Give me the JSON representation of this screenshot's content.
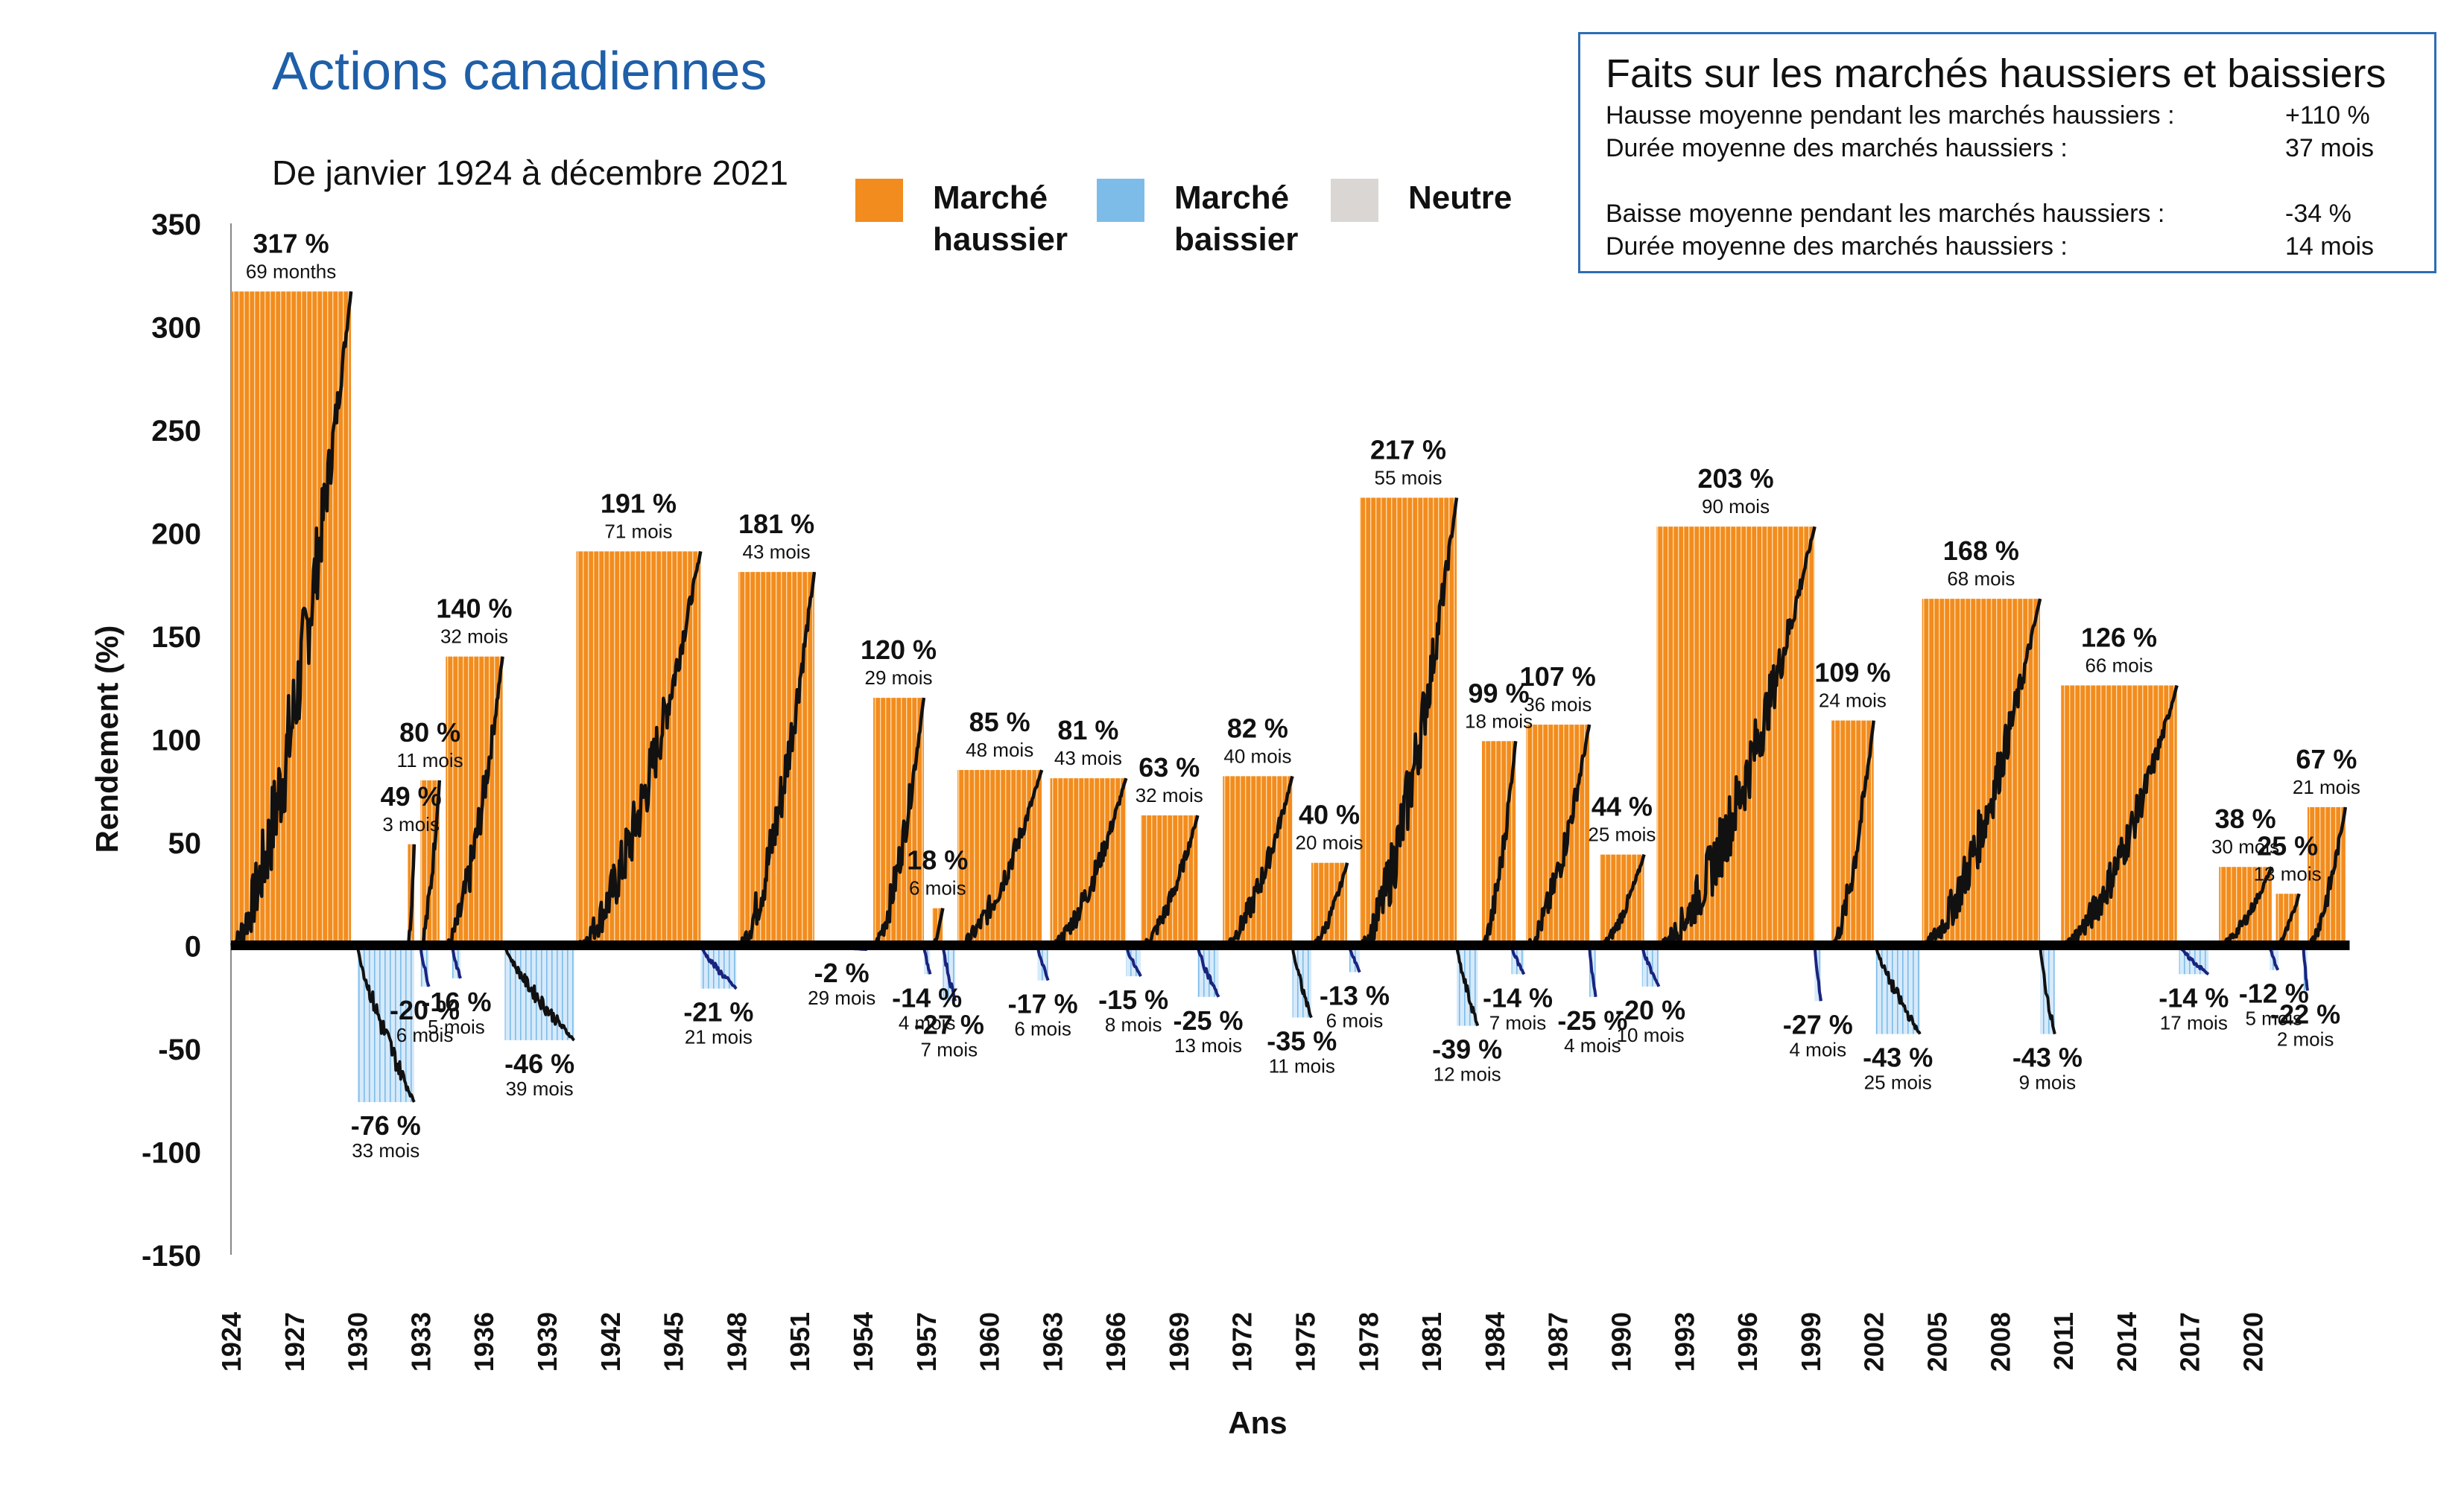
{
  "title": "Actions canadiennes",
  "subtitle": "De janvier 1924 à décembre 2021",
  "legend": [
    {
      "label_line1": "Marché",
      "label_line2": "haussier",
      "color": "#f28c1e"
    },
    {
      "label_line1": "Marché",
      "label_line2": "baissier",
      "color": "#7dbce8"
    },
    {
      "label_line1": "Neutre",
      "label_line2": "",
      "color": "#d9d6d3"
    }
  ],
  "facts": {
    "title": "Faits sur les marchés haussiers et baissiers",
    "rows": [
      {
        "label": "Hausse moyenne pendant les marchés haussiers :",
        "value": "+110 %"
      },
      {
        "label": "Durée moyenne des marchés haussiers :",
        "value": "37 mois"
      },
      {
        "label": "Baisse moyenne pendant les marchés haussiers :",
        "value": "-34 %"
      },
      {
        "label": "Durée moyenne des marchés haussiers :",
        "value": "14 mois"
      }
    ]
  },
  "chart_data": {
    "type": "bar",
    "ylabel": "Rendement (%)",
    "xlabel": "Ans",
    "ylim": [
      -150,
      350
    ],
    "yticks": [
      350,
      300,
      250,
      200,
      150,
      100,
      50,
      0,
      -50,
      -100,
      -150
    ],
    "xlim": [
      1924,
      2022
    ],
    "xticks": [
      "1924",
      "1927",
      "1930",
      "1933",
      "1936",
      "1939",
      "1942",
      "1945",
      "1948",
      "1951",
      "1954",
      "1957",
      "1960",
      "1963",
      "1966",
      "1969",
      "1972",
      "1975",
      "1978",
      "1981",
      "1984",
      "1987",
      "1990",
      "1993",
      "1996",
      "1999",
      "2002",
      "2005",
      "2008",
      "2011",
      "2014",
      "2017",
      "2020"
    ],
    "colors": {
      "bull": "#f28c1e",
      "bear": "#7dbce8",
      "neutral": "#d9d6d3",
      "line": "#111111",
      "bear_line": "#1a237e"
    },
    "bull_markets": [
      {
        "start": 1924.0,
        "end": 1929.7,
        "value": 317,
        "label": "317 %",
        "duration": "69 months"
      },
      {
        "start": 1932.4,
        "end": 1932.7,
        "value": 49,
        "label": "49 %",
        "duration": "3 mois"
      },
      {
        "start": 1933.0,
        "end": 1933.9,
        "value": 80,
        "label": "80 %",
        "duration": "11 mois"
      },
      {
        "start": 1934.2,
        "end": 1936.9,
        "value": 140,
        "label": "140 %",
        "duration": "32 mois"
      },
      {
        "start": 1940.4,
        "end": 1946.3,
        "value": 191,
        "label": "191 %",
        "duration": "71 mois"
      },
      {
        "start": 1948.1,
        "end": 1951.7,
        "value": 181,
        "label": "181 %",
        "duration": "43 mois"
      },
      {
        "start": 1954.5,
        "end": 1956.9,
        "value": 120,
        "label": "120 %",
        "duration": "29 mois"
      },
      {
        "start": 1957.3,
        "end": 1957.8,
        "value": 18,
        "label": "18 %",
        "duration": "6 mois"
      },
      {
        "start": 1958.5,
        "end": 1962.5,
        "value": 85,
        "label": "85 %",
        "duration": "48 mois"
      },
      {
        "start": 1962.9,
        "end": 1966.5,
        "value": 81,
        "label": "81 %",
        "duration": "43 mois"
      },
      {
        "start": 1967.2,
        "end": 1969.9,
        "value": 63,
        "label": "63 %",
        "duration": "32 mois"
      },
      {
        "start": 1971.1,
        "end": 1974.4,
        "value": 82,
        "label": "82 %",
        "duration": "40 mois"
      },
      {
        "start": 1975.3,
        "end": 1977.0,
        "value": 40,
        "label": "40 %",
        "duration": "20 mois"
      },
      {
        "start": 1977.6,
        "end": 1982.2,
        "value": 217,
        "label": "217 %",
        "duration": "55 mois"
      },
      {
        "start": 1983.4,
        "end": 1985.0,
        "value": 99,
        "label": "99 %",
        "duration": "18 mois"
      },
      {
        "start": 1985.5,
        "end": 1988.5,
        "value": 107,
        "label": "107 %",
        "duration": "36 mois"
      },
      {
        "start": 1989.0,
        "end": 1991.1,
        "value": 44,
        "label": "44 %",
        "duration": "25 mois"
      },
      {
        "start": 1991.7,
        "end": 1999.2,
        "value": 203,
        "label": "203 %",
        "duration": "90 mois"
      },
      {
        "start": 2000.0,
        "end": 2002.0,
        "value": 109,
        "label": "109 %",
        "duration": "24 mois"
      },
      {
        "start": 2004.3,
        "end": 2009.9,
        "value": 168,
        "label": "168 %",
        "duration": "68 mois"
      },
      {
        "start": 2010.9,
        "end": 2016.4,
        "value": 126,
        "label": "126 %",
        "duration": "66 mois"
      },
      {
        "start": 2018.4,
        "end": 2020.9,
        "value": 38,
        "label": "38 %",
        "duration": "30 mois"
      },
      {
        "start": 2021.1,
        "end": 2022.2,
        "value": 25,
        "label": "25 %",
        "duration": "13 mois"
      },
      {
        "start": 2022.6,
        "end": 2024.4,
        "value": 67,
        "label": "67 %",
        "duration": "21 mois"
      }
    ],
    "bear_markets": [
      {
        "start": 1930.0,
        "end": 1932.7,
        "value": -76,
        "label": "-76 %",
        "duration": "33 mois"
      },
      {
        "start": 1933.0,
        "end": 1933.4,
        "value": -20,
        "label": "-20 %",
        "duration": "6 mois"
      },
      {
        "start": 1934.5,
        "end": 1934.9,
        "value": -16,
        "label": "-16 %",
        "duration": "5 mois"
      },
      {
        "start": 1937.0,
        "end": 1940.3,
        "value": -46,
        "label": "-46 %",
        "duration": "39 mois"
      },
      {
        "start": 1946.3,
        "end": 1948.0,
        "value": -21,
        "label": "-21 %",
        "duration": "21 mois"
      },
      {
        "start": 1951.8,
        "end": 1954.2,
        "value": -2,
        "label": "-2 %",
        "duration": "29 mois"
      },
      {
        "start": 1956.9,
        "end": 1957.2,
        "value": -14,
        "label": "-14 %",
        "duration": "4 mois"
      },
      {
        "start": 1957.8,
        "end": 1958.4,
        "value": -27,
        "label": "-27 %",
        "duration": "7 mois"
      },
      {
        "start": 1962.3,
        "end": 1962.8,
        "value": -17,
        "label": "-17 %",
        "duration": "6 mois"
      },
      {
        "start": 1966.5,
        "end": 1967.2,
        "value": -15,
        "label": "-15 %",
        "duration": "8 mois"
      },
      {
        "start": 1969.9,
        "end": 1970.9,
        "value": -25,
        "label": "-25 %",
        "duration": "13 mois"
      },
      {
        "start": 1974.4,
        "end": 1975.3,
        "value": -35,
        "label": "-35 %",
        "duration": "11 mois"
      },
      {
        "start": 1977.1,
        "end": 1977.6,
        "value": -13,
        "label": "-13 %",
        "duration": "6 mois"
      },
      {
        "start": 1982.2,
        "end": 1983.2,
        "value": -39,
        "label": "-39 %",
        "duration": "12 mois"
      },
      {
        "start": 1984.8,
        "end": 1985.4,
        "value": -14,
        "label": "-14 %",
        "duration": "7 mois"
      },
      {
        "start": 1988.5,
        "end": 1988.8,
        "value": -25,
        "label": "-25 %",
        "duration": "4 mois"
      },
      {
        "start": 1991.0,
        "end": 1991.8,
        "value": -20,
        "label": "-20 %",
        "duration": "10 mois"
      },
      {
        "start": 1999.2,
        "end": 1999.5,
        "value": -27,
        "label": "-27 %",
        "duration": "4 mois"
      },
      {
        "start": 2002.1,
        "end": 2004.2,
        "value": -43,
        "label": "-43 %",
        "duration": "25 mois"
      },
      {
        "start": 2009.9,
        "end": 2010.6,
        "value": -43,
        "label": "-43 %",
        "duration": "9 mois"
      },
      {
        "start": 2016.5,
        "end": 2017.9,
        "value": -14,
        "label": "-14 %",
        "duration": "17 mois"
      },
      {
        "start": 2020.8,
        "end": 2021.2,
        "value": -12,
        "label": "-12 %",
        "duration": "5 mois"
      },
      {
        "start": 2022.4,
        "end": 2022.6,
        "value": -22,
        "label": "-22 %",
        "duration": "2 mois"
      }
    ]
  }
}
